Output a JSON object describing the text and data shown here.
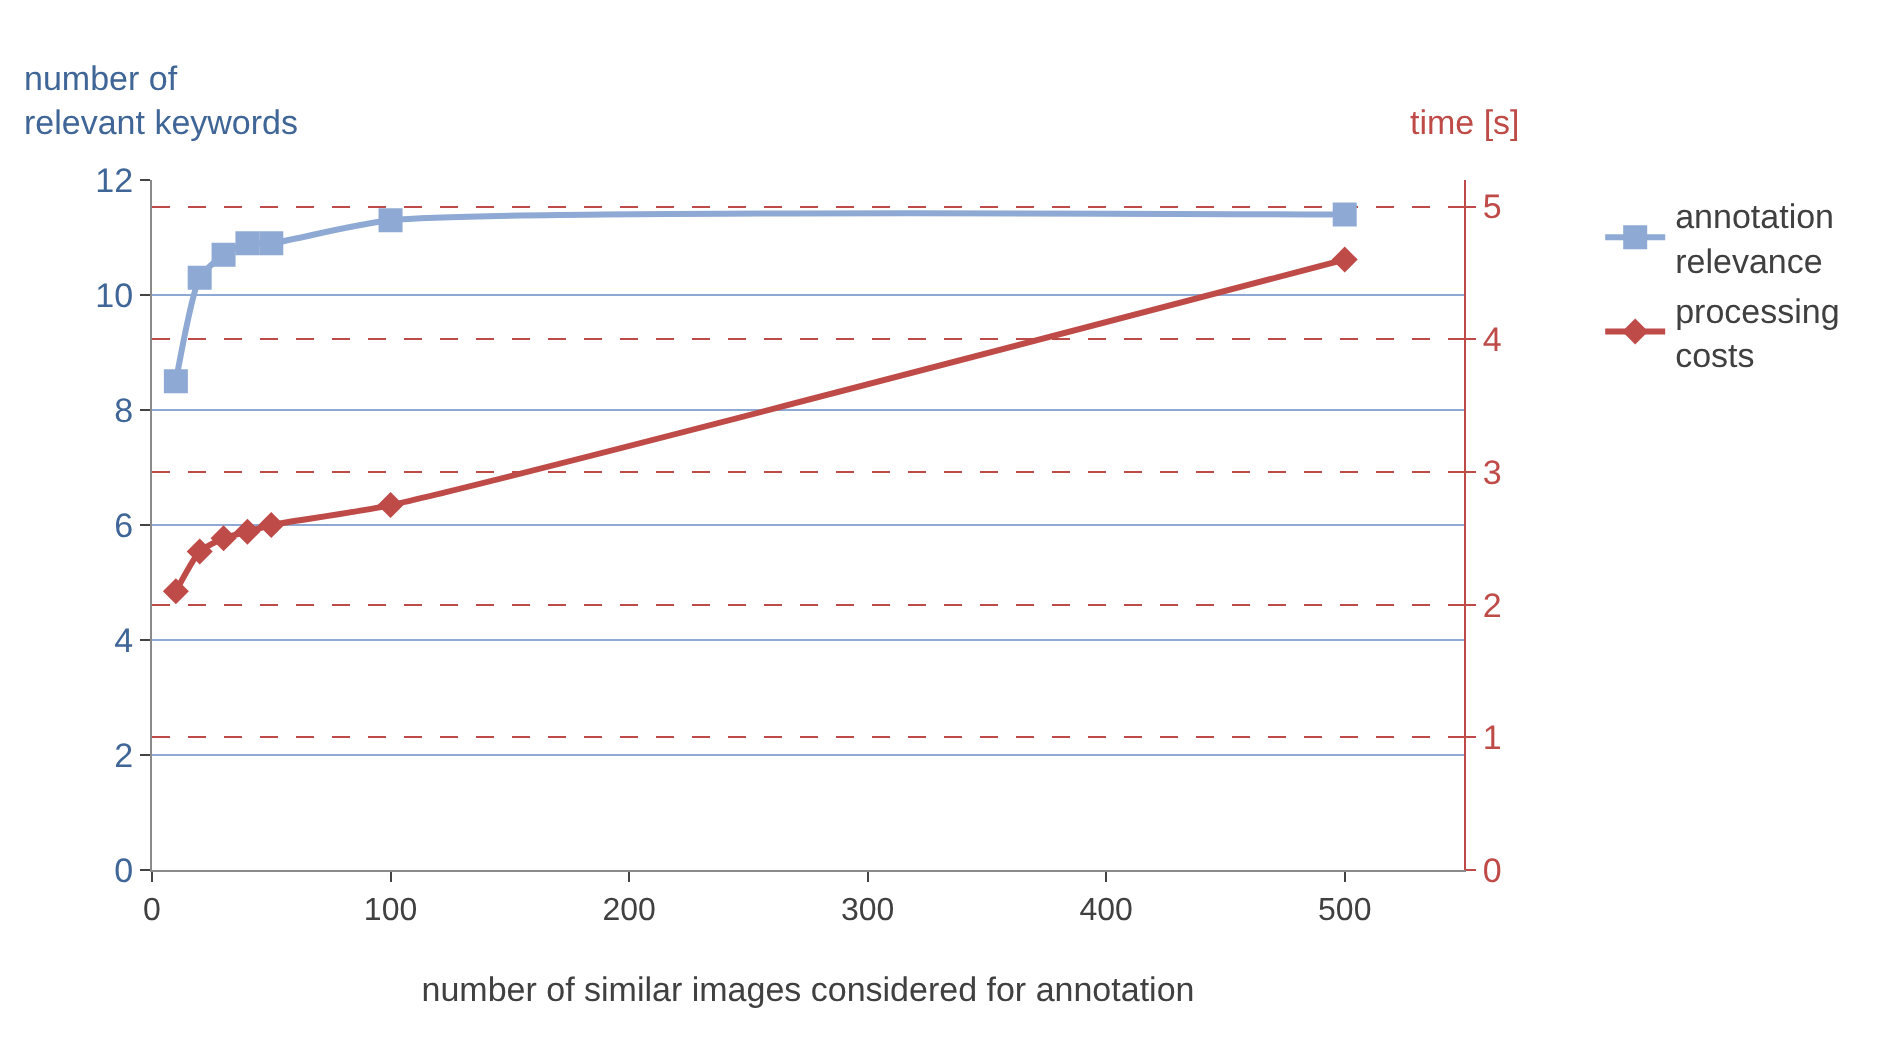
{
  "chart_data": {
    "type": "line",
    "xlabel": "number of similar images considered for annotation",
    "ylabel": "number of\nrelevant keywords",
    "y2label": "time [s]",
    "x": [
      10,
      20,
      30,
      40,
      50,
      100,
      500
    ],
    "series": [
      {
        "name": "annotation\nrelevance",
        "color": "#8ea9d3",
        "marker": "square",
        "values": [
          8.5,
          10.3,
          10.7,
          10.9,
          10.9,
          11.3,
          11.4
        ]
      },
      {
        "name": "processing\ncosts",
        "color": "#be4b48",
        "marker": "diamond",
        "axis": "y2",
        "values": [
          2.1,
          2.4,
          2.5,
          2.55,
          2.6,
          2.75,
          4.6
        ]
      }
    ],
    "xlim": [
      0,
      550
    ],
    "xticks": [
      0,
      100,
      200,
      300,
      400,
      500
    ],
    "ylim": [
      0,
      12
    ],
    "yticks": [
      0,
      2,
      4,
      6,
      8,
      10,
      12
    ],
    "y2lim": [
      0,
      5.2
    ],
    "y2ticks": [
      0,
      1,
      2,
      3,
      4,
      5
    ],
    "grid": "y",
    "legend": "right",
    "line_style": "solid"
  }
}
